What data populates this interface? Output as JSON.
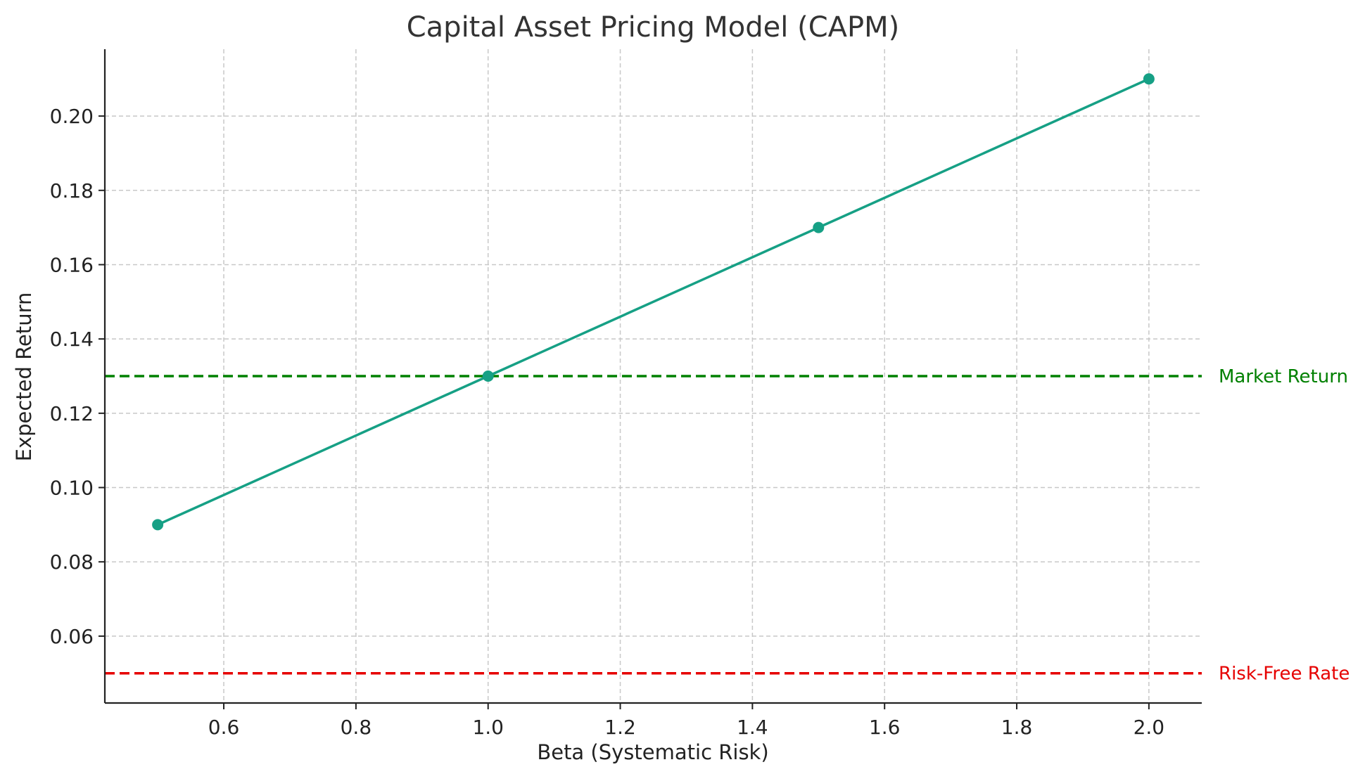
{
  "chart_data": {
    "type": "line",
    "title": "Capital Asset Pricing Model (CAPM)",
    "xlabel": "Beta (Systematic Risk)",
    "ylabel": "Expected Return",
    "xlim": [
      0.42,
      2.08
    ],
    "ylim": [
      0.042,
      0.218
    ],
    "x_ticks": [
      0.6,
      0.8,
      1.0,
      1.2,
      1.4,
      1.6,
      1.8,
      2.0
    ],
    "x_tick_labels": [
      "0.6",
      "0.8",
      "1.0",
      "1.2",
      "1.4",
      "1.6",
      "1.8",
      "2.0"
    ],
    "y_ticks": [
      0.06,
      0.08,
      0.1,
      0.12,
      0.14,
      0.16,
      0.18,
      0.2
    ],
    "y_tick_labels": [
      "0.06",
      "0.08",
      "0.10",
      "0.12",
      "0.14",
      "0.16",
      "0.18",
      "0.20"
    ],
    "grid": true,
    "series": [
      {
        "color": "#16a085",
        "x": [
          0.5,
          1.0,
          1.5,
          2.0
        ],
        "y": [
          0.09,
          0.13,
          0.17,
          0.21
        ]
      }
    ],
    "reference_lines": [
      {
        "label": "Market Return",
        "y": 0.13,
        "color": "#008000"
      },
      {
        "label": "Risk-Free Rate",
        "y": 0.05,
        "color": "#e60000"
      }
    ]
  }
}
